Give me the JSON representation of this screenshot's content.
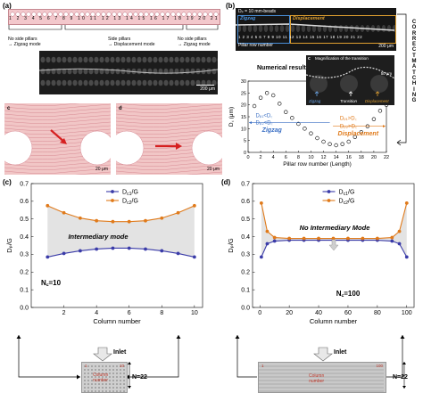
{
  "panel_a": {
    "letter": "(a)",
    "row_numbers": [
      "1",
      "2",
      "3",
      "4",
      "5",
      "6",
      "7",
      "8",
      "9",
      "10",
      "11",
      "12",
      "13",
      "14",
      "15",
      "16",
      "17",
      "18",
      "19",
      "20",
      "21"
    ],
    "label_left": "No side pillars\n→ Zigzag mode",
    "label_mid": "Side pillars\n→ Displacement mode",
    "label_right": "No side pillars\n→ Zigzag mode",
    "scale_top": "200 μm",
    "sub_c": "c",
    "sub_d": "d",
    "scale_c": "20 μm",
    "scale_d": "20 μm"
  },
  "panel_b": {
    "letter": "(b)",
    "dp_label": "Dₚ = 10 mm-beads",
    "zigzag": "Zigzag",
    "displacement": "Displacement",
    "pillar_row_number": "Pillar row number",
    "numbers_line": "1 2 3 4 5 6 7 8 9 10 11 12 13 14 15 16 17 18 19 20 21 22",
    "scale": "200 μm",
    "numerical_results": "Numerical results",
    "inset_letter": "c",
    "inset_title": "Magnification of the transition",
    "inset_scale": "50 μm",
    "inset_zigzag": "Zigzag",
    "inset_transition": "Transition",
    "inset_displacement": "Displacement",
    "side_label": "CORRECT MATCHING",
    "ann_left_1": "Dₚ₁<D꜀",
    "ann_left_2": "Dₚ₂<D꜀",
    "ann_right_1": "Dₚ₁>D꜀",
    "ann_right_2": "Dₚ₂>D꜀",
    "zone_zigzag": "Zigzag",
    "zone_displacement": "Displacement"
  },
  "panel_c": {
    "letter": "(c)",
    "annotation": "Intermediary mode",
    "nc": "N꜀=10"
  },
  "panel_d": {
    "letter": "(d)",
    "annotation": "No Intermediary Mode",
    "nc": "N꜀=100"
  },
  "bottom": {
    "inlet_left": "Inlet",
    "inlet_right": "Inlet",
    "n_left": "N=22",
    "n_right": "N=22",
    "column_number": "Column\nnumber",
    "thumb_left_1": "1",
    "thumb_left_10": "10",
    "thumb_right_1": "1",
    "thumb_right_100": "100"
  },
  "chart_data": [
    {
      "type": "scatter",
      "id": "b",
      "xlabel": "Pillar row number (Length)",
      "ylabel": "D꜀ (μm)",
      "xlim": [
        0,
        22
      ],
      "ylim": [
        0,
        30
      ],
      "xticks": [
        0,
        2,
        4,
        6,
        8,
        10,
        12,
        14,
        16,
        18,
        20,
        22
      ],
      "yticks": [
        0,
        5,
        10,
        15,
        20,
        25,
        30
      ],
      "points": [
        [
          1,
          19.5
        ],
        [
          2,
          23
        ],
        [
          3,
          25
        ],
        [
          4,
          24
        ],
        [
          5,
          20.5
        ],
        [
          6,
          17
        ],
        [
          7,
          14.5
        ],
        [
          8,
          12
        ],
        [
          9,
          10
        ],
        [
          10,
          8
        ],
        [
          11,
          6
        ],
        [
          12,
          4.5
        ],
        [
          13,
          3.5
        ],
        [
          14,
          3
        ],
        [
          15,
          3.5
        ],
        [
          16,
          4.5
        ],
        [
          17,
          6.5
        ],
        [
          18,
          8.5
        ],
        [
          19,
          11
        ],
        [
          20,
          14
        ],
        [
          21,
          17.5
        ],
        [
          22,
          20
        ]
      ]
    },
    {
      "type": "line",
      "id": "c",
      "xlabel": "Column number",
      "ylabel": "Dₚ/G",
      "xlim": [
        0,
        10.5
      ],
      "ylim": [
        0.0,
        0.7
      ],
      "xticks": [
        2,
        4,
        6,
        8,
        10
      ],
      "yticks": [
        0.0,
        0.1,
        0.2,
        0.3,
        0.4,
        0.5,
        0.6,
        0.7
      ],
      "legend": "top-center",
      "x": [
        1,
        2,
        3,
        4,
        5,
        6,
        7,
        8,
        9,
        10
      ],
      "series": [
        {
          "name": "Dc1/G",
          "color": "#3a3ba8",
          "values": [
            0.285,
            0.305,
            0.32,
            0.33,
            0.335,
            0.335,
            0.33,
            0.32,
            0.305,
            0.285
          ]
        },
        {
          "name": "Dc2/G",
          "color": "#e07a1a",
          "values": [
            0.575,
            0.535,
            0.505,
            0.49,
            0.485,
            0.485,
            0.49,
            0.505,
            0.535,
            0.575
          ]
        }
      ]
    },
    {
      "type": "line",
      "id": "d",
      "xlabel": "Column number",
      "ylabel": "Dₚ/G",
      "xlim": [
        -5,
        105
      ],
      "ylim": [
        0.0,
        0.7
      ],
      "xticks": [
        0,
        20,
        40,
        60,
        80,
        100
      ],
      "yticks": [
        0.0,
        0.1,
        0.2,
        0.3,
        0.4,
        0.5,
        0.6,
        0.7
      ],
      "legend": "top-center",
      "x": [
        1,
        5,
        10,
        20,
        30,
        40,
        50,
        60,
        70,
        80,
        90,
        95,
        100
      ],
      "series": [
        {
          "name": "Dc1/G",
          "color": "#3a3ba8",
          "values": [
            0.285,
            0.36,
            0.375,
            0.38,
            0.38,
            0.38,
            0.38,
            0.38,
            0.38,
            0.38,
            0.375,
            0.36,
            0.285
          ]
        },
        {
          "name": "Dc2/G",
          "color": "#e07a1a",
          "values": [
            0.59,
            0.43,
            0.395,
            0.39,
            0.39,
            0.39,
            0.39,
            0.39,
            0.39,
            0.39,
            0.395,
            0.43,
            0.59
          ]
        }
      ]
    }
  ]
}
